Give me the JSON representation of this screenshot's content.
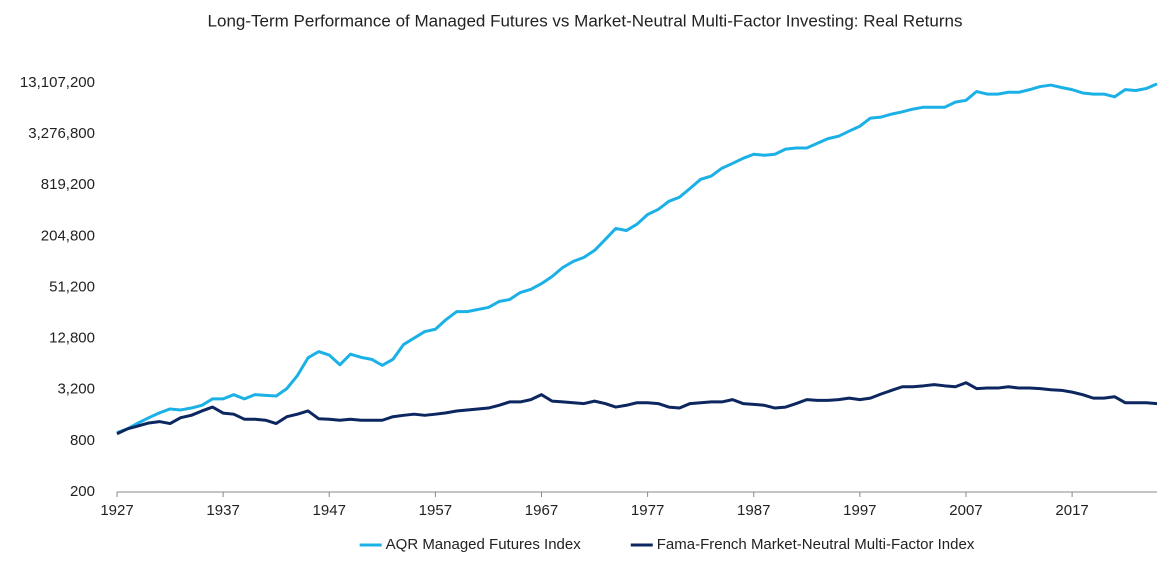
{
  "chart_data": {
    "type": "line",
    "title": "Long-Term Performance of Managed Futures vs Market-Neutral Multi-Factor Investing: Real Returns",
    "x": [
      1927,
      1928,
      1929,
      1930,
      1931,
      1932,
      1933,
      1934,
      1935,
      1936,
      1937,
      1938,
      1939,
      1940,
      1941,
      1942,
      1943,
      1944,
      1945,
      1946,
      1947,
      1948,
      1949,
      1950,
      1951,
      1952,
      1953,
      1954,
      1955,
      1956,
      1957,
      1958,
      1959,
      1960,
      1961,
      1962,
      1963,
      1964,
      1965,
      1966,
      1967,
      1968,
      1969,
      1970,
      1971,
      1972,
      1973,
      1974,
      1975,
      1976,
      1977,
      1978,
      1979,
      1980,
      1981,
      1982,
      1983,
      1984,
      1985,
      1986,
      1987,
      1988,
      1989,
      1990,
      1991,
      1992,
      1993,
      1994,
      1995,
      1996,
      1997,
      1998,
      1999,
      2000,
      2001,
      2002,
      2003,
      2004,
      2005,
      2006,
      2007,
      2008,
      2009,
      2010,
      2011,
      2012,
      2013,
      2014,
      2015,
      2016,
      2017,
      2018,
      2019,
      2020,
      2021,
      2022,
      2023,
      2024,
      2025
    ],
    "series": [
      {
        "name": "AQR Managed Futures Index",
        "color": "#1bb1e7",
        "values": [
          1000,
          1110,
          1300,
          1500,
          1710,
          1900,
          1850,
          1950,
          2100,
          2500,
          2500,
          2800,
          2500,
          2800,
          2750,
          2700,
          3300,
          4700,
          7600,
          9000,
          8200,
          6300,
          8400,
          7700,
          7300,
          6200,
          7300,
          10900,
          13000,
          15500,
          16500,
          21400,
          26600,
          26600,
          28200,
          29800,
          35000,
          37000,
          44700,
          48700,
          56900,
          69000,
          88000,
          104000,
          116000,
          140000,
          188000,
          254000,
          240000,
          285000,
          371000,
          425000,
          530000,
          592000,
          753000,
          962000,
          1050000,
          1300000,
          1480000,
          1700000,
          1900000,
          1850000,
          1900000,
          2180000,
          2250000,
          2250000,
          2560000,
          2900000,
          3100000,
          3560000,
          4060000,
          5060000,
          5200000,
          5640000,
          6000000,
          6460000,
          6800000,
          6800000,
          6800000,
          7800000,
          8200000,
          10400000,
          9700000,
          9700000,
          10200000,
          10200000,
          10950000,
          11900000,
          12400000,
          11600000,
          10950000,
          10000000,
          9700000,
          9700000,
          9000000,
          10950000,
          10700000,
          11300000,
          12800000
        ]
      },
      {
        "name": "Fama-French Market-Neutral Multi-Factor Index",
        "color": "#0c2660",
        "values": [
          970,
          1110,
          1200,
          1300,
          1350,
          1280,
          1500,
          1600,
          1800,
          2000,
          1700,
          1650,
          1440,
          1440,
          1400,
          1280,
          1540,
          1650,
          1800,
          1460,
          1440,
          1400,
          1440,
          1400,
          1400,
          1400,
          1540,
          1600,
          1650,
          1600,
          1650,
          1710,
          1800,
          1850,
          1900,
          1950,
          2100,
          2300,
          2300,
          2450,
          2800,
          2350,
          2300,
          2250,
          2200,
          2350,
          2200,
          2000,
          2100,
          2250,
          2250,
          2200,
          2000,
          1950,
          2200,
          2250,
          2300,
          2300,
          2450,
          2200,
          2150,
          2100,
          1950,
          2000,
          2200,
          2450,
          2400,
          2400,
          2450,
          2550,
          2450,
          2550,
          2850,
          3150,
          3470,
          3470,
          3560,
          3680,
          3560,
          3470,
          3870,
          3300,
          3350,
          3350,
          3470,
          3350,
          3350,
          3300,
          3200,
          3150,
          3000,
          2800,
          2550,
          2550,
          2650,
          2250,
          2250,
          2250,
          2200
        ]
      }
    ],
    "xlim": [
      1927,
      2025
    ],
    "xticks": [
      1927,
      1937,
      1947,
      1957,
      1967,
      1977,
      1987,
      1997,
      2007,
      2017
    ],
    "ylim": [
      200,
      13107200
    ],
    "y_scale": "log",
    "yticks": [
      200,
      800,
      {
        "value": 3200,
        "label": "3,200"
      },
      {
        "value": 12800,
        "label": "12,800"
      },
      {
        "value": 51200,
        "label": "51,200"
      },
      {
        "value": 204800,
        "label": "204,800"
      },
      {
        "value": 819200,
        "label": "819,200"
      },
      {
        "value": 3276800,
        "label": "3,276,800"
      },
      {
        "value": 13107200,
        "label": "13,107,200"
      }
    ],
    "grid": false,
    "legend": "bottom"
  }
}
